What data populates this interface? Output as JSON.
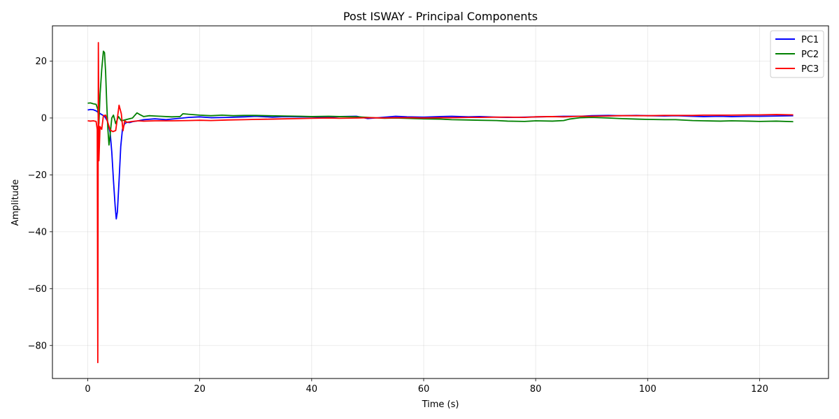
{
  "chart_data": {
    "type": "line",
    "title": "Post ISWAY - Principal Components",
    "xlabel": "Time (s)",
    "ylabel": "Amplitude",
    "xlim": [
      -6.3,
      132.3
    ],
    "ylim": [
      -91.6,
      32.4
    ],
    "xticks": [
      0,
      20,
      40,
      60,
      80,
      100,
      120
    ],
    "yticks": [
      -80,
      -60,
      -40,
      -20,
      0,
      20
    ],
    "grid": true,
    "legend_position": "top-right",
    "series": [
      {
        "name": "PC1",
        "color": "#0000ff",
        "points": [
          [
            0,
            2.8
          ],
          [
            0.5,
            3
          ],
          [
            1,
            2.9
          ],
          [
            1.5,
            2.5
          ],
          [
            2,
            1.8
          ],
          [
            2.5,
            1.2
          ],
          [
            3,
            0.6
          ],
          [
            3.5,
            -1
          ],
          [
            4,
            -5
          ],
          [
            4.3,
            -12
          ],
          [
            4.6,
            -22
          ],
          [
            4.9,
            -31
          ],
          [
            5.1,
            -35.5
          ],
          [
            5.3,
            -33
          ],
          [
            5.6,
            -22
          ],
          [
            5.9,
            -10
          ],
          [
            6.2,
            -4
          ],
          [
            6.6,
            -2
          ],
          [
            7,
            -1.5
          ],
          [
            7.5,
            -1.6
          ],
          [
            8,
            -1.3
          ],
          [
            9,
            -1
          ],
          [
            10,
            -0.6
          ],
          [
            12,
            -0.3
          ],
          [
            14,
            -0.6
          ],
          [
            16,
            -0.2
          ],
          [
            18,
            0.2
          ],
          [
            20,
            0.4
          ],
          [
            22,
            0.1
          ],
          [
            25,
            0.2
          ],
          [
            28,
            0.4
          ],
          [
            30,
            0.6
          ],
          [
            33,
            0.3
          ],
          [
            35,
            0.5
          ],
          [
            38,
            0.4
          ],
          [
            40,
            0.4
          ],
          [
            43,
            0.2
          ],
          [
            45,
            0.5
          ],
          [
            48,
            0.6
          ],
          [
            50,
            -0.2
          ],
          [
            52,
            0.1
          ],
          [
            55,
            0.6
          ],
          [
            57,
            0.4
          ],
          [
            60,
            0.3
          ],
          [
            63,
            0.5
          ],
          [
            65,
            0.6
          ],
          [
            68,
            0.4
          ],
          [
            70,
            0.5
          ],
          [
            73,
            0.3
          ],
          [
            75,
            0.2
          ],
          [
            78,
            0.3
          ],
          [
            80,
            0.4
          ],
          [
            83,
            0.5
          ],
          [
            85,
            0.6
          ],
          [
            88,
            0.6
          ],
          [
            90,
            0.8
          ],
          [
            93,
            0.9
          ],
          [
            95,
            0.8
          ],
          [
            98,
            0.9
          ],
          [
            100,
            0.8
          ],
          [
            103,
            0.7
          ],
          [
            105,
            0.8
          ],
          [
            108,
            0.6
          ],
          [
            110,
            0.5
          ],
          [
            113,
            0.6
          ],
          [
            115,
            0.5
          ],
          [
            118,
            0.6
          ],
          [
            120,
            0.6
          ],
          [
            123,
            0.7
          ],
          [
            126,
            0.8
          ]
        ]
      },
      {
        "name": "PC2",
        "color": "#008000",
        "points": [
          [
            0,
            5.2
          ],
          [
            0.5,
            5.3
          ],
          [
            1,
            5
          ],
          [
            1.5,
            4.8
          ],
          [
            1.8,
            3
          ],
          [
            2,
            -2
          ],
          [
            2.2,
            8
          ],
          [
            2.5,
            17
          ],
          [
            2.8,
            23.5
          ],
          [
            3,
            23
          ],
          [
            3.2,
            16
          ],
          [
            3.4,
            5
          ],
          [
            3.6,
            -4
          ],
          [
            3.8,
            -9.5
          ],
          [
            4,
            -6
          ],
          [
            4.3,
            0
          ],
          [
            4.6,
            1
          ],
          [
            5,
            -2
          ],
          [
            5.5,
            0.5
          ],
          [
            6,
            -1
          ],
          [
            7,
            -0.5
          ],
          [
            8,
            0
          ],
          [
            8.8,
            1.8
          ],
          [
            9.3,
            1.2
          ],
          [
            10,
            0.5
          ],
          [
            11,
            0.8
          ],
          [
            12,
            0.7
          ],
          [
            13,
            0.6
          ],
          [
            15,
            0.4
          ],
          [
            16.5,
            0.5
          ],
          [
            17,
            1.5
          ],
          [
            18,
            1.3
          ],
          [
            20,
            1
          ],
          [
            22,
            0.8
          ],
          [
            24,
            1
          ],
          [
            26,
            0.8
          ],
          [
            28,
            0.9
          ],
          [
            30,
            0.9
          ],
          [
            32,
            0.8
          ],
          [
            35,
            0.7
          ],
          [
            38,
            0.6
          ],
          [
            40,
            0.5
          ],
          [
            43,
            0.6
          ],
          [
            45,
            0.5
          ],
          [
            48,
            0.4
          ],
          [
            50,
            0.2
          ],
          [
            53,
            -0.1
          ],
          [
            55,
            0
          ],
          [
            58,
            -0.2
          ],
          [
            60,
            -0.3
          ],
          [
            63,
            -0.4
          ],
          [
            65,
            -0.6
          ],
          [
            68,
            -0.7
          ],
          [
            70,
            -0.8
          ],
          [
            73,
            -0.9
          ],
          [
            75,
            -1.1
          ],
          [
            78,
            -1.2
          ],
          [
            80,
            -1
          ],
          [
            83,
            -1.1
          ],
          [
            85,
            -0.9
          ],
          [
            86,
            -0.4
          ],
          [
            88,
            0.1
          ],
          [
            90,
            0.2
          ],
          [
            93,
            0
          ],
          [
            95,
            -0.2
          ],
          [
            98,
            -0.4
          ],
          [
            100,
            -0.5
          ],
          [
            103,
            -0.6
          ],
          [
            105,
            -0.6
          ],
          [
            108,
            -0.9
          ],
          [
            110,
            -1
          ],
          [
            113,
            -1.1
          ],
          [
            115,
            -1
          ],
          [
            118,
            -1.1
          ],
          [
            120,
            -1.2
          ],
          [
            123,
            -1.1
          ],
          [
            126,
            -1.3
          ]
        ]
      },
      {
        "name": "PC3",
        "color": "#ff0000",
        "points": [
          [
            0,
            -1
          ],
          [
            0.5,
            -1.1
          ],
          [
            1,
            -1
          ],
          [
            1.5,
            -1.2
          ],
          [
            1.7,
            -4
          ],
          [
            1.8,
            -86
          ],
          [
            1.85,
            -30
          ],
          [
            1.9,
            26.5
          ],
          [
            1.95,
            10
          ],
          [
            2,
            -15
          ],
          [
            2.2,
            -3
          ],
          [
            2.5,
            -4
          ],
          [
            2.8,
            0.8
          ],
          [
            3.2,
            1
          ],
          [
            3.5,
            -1
          ],
          [
            4,
            -4.2
          ],
          [
            4.5,
            -4.8
          ],
          [
            5,
            -4.4
          ],
          [
            5.3,
            0
          ],
          [
            5.6,
            4.5
          ],
          [
            6,
            1.5
          ],
          [
            6.3,
            -4.5
          ],
          [
            6.6,
            -1
          ],
          [
            7,
            -1.5
          ],
          [
            8,
            -1.2
          ],
          [
            9,
            -1
          ],
          [
            10,
            -1.1
          ],
          [
            12,
            -1
          ],
          [
            15,
            -1
          ],
          [
            18,
            -0.9
          ],
          [
            20,
            -0.8
          ],
          [
            22,
            -0.9
          ],
          [
            25,
            -0.7
          ],
          [
            28,
            -0.6
          ],
          [
            30,
            -0.5
          ],
          [
            33,
            -0.4
          ],
          [
            35,
            -0.3
          ],
          [
            38,
            -0.2
          ],
          [
            40,
            -0.1
          ],
          [
            43,
            0
          ],
          [
            45,
            -0.1
          ],
          [
            48,
            0
          ],
          [
            50,
            0.1
          ],
          [
            53,
            0
          ],
          [
            55,
            0.1
          ],
          [
            58,
            0.1
          ],
          [
            60,
            0
          ],
          [
            63,
            0.1
          ],
          [
            65,
            0.1
          ],
          [
            68,
            0.2
          ],
          [
            70,
            0.2
          ],
          [
            73,
            0.3
          ],
          [
            75,
            0.3
          ],
          [
            78,
            0.2
          ],
          [
            80,
            0.4
          ],
          [
            83,
            0.5
          ],
          [
            85,
            0.4
          ],
          [
            88,
            0.6
          ],
          [
            90,
            0.6
          ],
          [
            93,
            0.7
          ],
          [
            95,
            0.8
          ],
          [
            98,
            0.8
          ],
          [
            100,
            0.8
          ],
          [
            103,
            0.9
          ],
          [
            105,
            0.9
          ],
          [
            108,
            0.9
          ],
          [
            110,
            1
          ],
          [
            113,
            1
          ],
          [
            115,
            1
          ],
          [
            118,
            1.1
          ],
          [
            120,
            1.1
          ],
          [
            123,
            1.2
          ],
          [
            126,
            1.1
          ]
        ]
      }
    ]
  }
}
